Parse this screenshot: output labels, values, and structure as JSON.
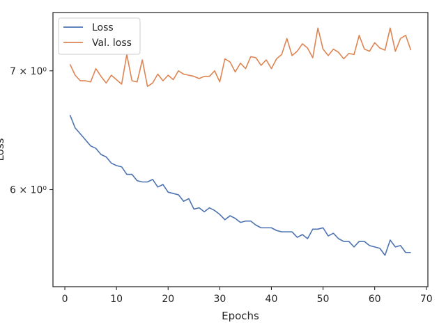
{
  "chart_data": {
    "type": "line",
    "xlabel": "Epochs",
    "ylabel": "Loss",
    "y_scale": "log",
    "grid": false,
    "legend_position": "top-left",
    "xlim": [
      -2.3,
      70.3
    ],
    "ylim": [
      5.29,
      7.55
    ],
    "x_ticks": [
      0,
      10,
      20,
      30,
      40,
      50,
      60,
      70
    ],
    "y_ticks": [
      {
        "value": 6,
        "label": "6 × 10⁰"
      },
      {
        "value": 7,
        "label": "7 × 10⁰"
      }
    ],
    "series": [
      {
        "name": "Loss",
        "color": "#4c72b0",
        "x": [
          1,
          2,
          3,
          4,
          5,
          6,
          7,
          8,
          9,
          10,
          11,
          12,
          13,
          14,
          15,
          16,
          17,
          18,
          19,
          20,
          21,
          22,
          23,
          24,
          25,
          26,
          27,
          28,
          29,
          30,
          31,
          32,
          33,
          34,
          35,
          36,
          37,
          38,
          39,
          40,
          41,
          42,
          43,
          44,
          45,
          46,
          47,
          48,
          49,
          50,
          51,
          52,
          53,
          54,
          55,
          56,
          57,
          58,
          59,
          60,
          61,
          62,
          63,
          64,
          65,
          66,
          67
        ],
        "y": [
          6.61,
          6.5,
          6.45,
          6.4,
          6.35,
          6.33,
          6.28,
          6.26,
          6.21,
          6.19,
          6.18,
          6.12,
          6.12,
          6.07,
          6.06,
          6.06,
          6.08,
          6.02,
          6.04,
          5.98,
          5.97,
          5.96,
          5.91,
          5.93,
          5.85,
          5.86,
          5.83,
          5.86,
          5.84,
          5.81,
          5.77,
          5.8,
          5.78,
          5.75,
          5.76,
          5.76,
          5.73,
          5.71,
          5.71,
          5.71,
          5.69,
          5.68,
          5.68,
          5.68,
          5.64,
          5.66,
          5.63,
          5.7,
          5.7,
          5.71,
          5.65,
          5.67,
          5.63,
          5.61,
          5.61,
          5.57,
          5.61,
          5.61,
          5.58,
          5.57,
          5.56,
          5.51,
          5.62,
          5.57,
          5.58,
          5.53,
          5.53
        ]
      },
      {
        "name": "Val. loss",
        "color": "#dd8452",
        "x": [
          1,
          2,
          3,
          4,
          5,
          6,
          7,
          8,
          9,
          10,
          11,
          12,
          13,
          14,
          15,
          16,
          17,
          18,
          19,
          20,
          21,
          22,
          23,
          24,
          25,
          26,
          27,
          28,
          29,
          30,
          31,
          32,
          33,
          34,
          35,
          36,
          37,
          38,
          39,
          40,
          41,
          42,
          43,
          44,
          45,
          46,
          47,
          48,
          49,
          50,
          51,
          52,
          53,
          54,
          55,
          56,
          57,
          58,
          59,
          60,
          61,
          62,
          63,
          64,
          65,
          66,
          67
        ],
        "y": [
          7.06,
          6.96,
          6.91,
          6.91,
          6.9,
          7.02,
          6.95,
          6.89,
          6.96,
          6.92,
          6.88,
          7.15,
          6.91,
          6.9,
          7.1,
          6.86,
          6.89,
          6.97,
          6.91,
          6.96,
          6.92,
          7.0,
          6.97,
          6.96,
          6.95,
          6.93,
          6.95,
          6.95,
          7.0,
          6.9,
          7.11,
          7.08,
          6.99,
          7.07,
          7.02,
          7.13,
          7.12,
          7.05,
          7.1,
          7.02,
          7.11,
          7.15,
          7.3,
          7.14,
          7.18,
          7.25,
          7.21,
          7.12,
          7.4,
          7.2,
          7.14,
          7.2,
          7.17,
          7.11,
          7.16,
          7.15,
          7.33,
          7.2,
          7.18,
          7.26,
          7.21,
          7.19,
          7.4,
          7.18,
          7.3,
          7.33,
          7.19
        ]
      }
    ]
  }
}
